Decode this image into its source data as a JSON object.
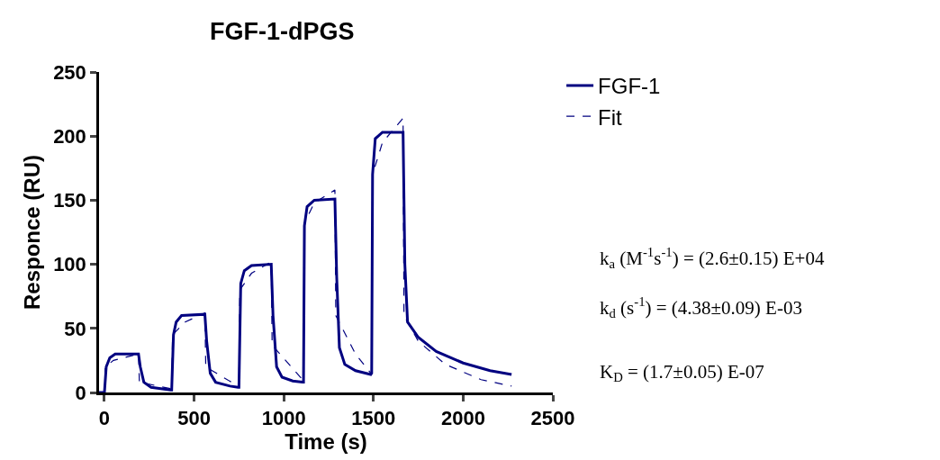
{
  "chart_data": {
    "type": "line",
    "title": "FGF-1-dPGS",
    "xlabel": "Time (s)",
    "ylabel": "Responce (RU)",
    "xlim": [
      -30,
      2500
    ],
    "xticks": [
      0,
      500,
      1000,
      1500,
      2000,
      2500
    ],
    "ylim": [
      0,
      250
    ],
    "yticks": [
      0,
      50,
      100,
      150,
      200,
      250
    ],
    "legend": "top right",
    "series": [
      {
        "name": "FGF-1",
        "color": "#000080",
        "line_style": "solid",
        "x": [
          -30,
          0,
          10,
          30,
          60,
          190,
          200,
          220,
          260,
          370,
          375,
          385,
          400,
          430,
          560,
          570,
          590,
          620,
          700,
          745,
          750,
          760,
          780,
          820,
          930,
          940,
          960,
          990,
          1050,
          1105,
          1110,
          1115,
          1130,
          1170,
          1285,
          1295,
          1310,
          1340,
          1400,
          1485,
          1490,
          1495,
          1510,
          1550,
          1665,
          1675,
          1690,
          1750,
          1850,
          2000,
          2150,
          2270
        ],
        "values": [
          0,
          0,
          20,
          27,
          30,
          30,
          20,
          8,
          4,
          2,
          2,
          45,
          55,
          60,
          61,
          40,
          15,
          8,
          5,
          4,
          4,
          85,
          95,
          99,
          100,
          60,
          20,
          12,
          9,
          8,
          8,
          130,
          145,
          150,
          151,
          90,
          35,
          22,
          17,
          14,
          15,
          170,
          198,
          203,
          203,
          100,
          55,
          43,
          32,
          23,
          17,
          14
        ]
      },
      {
        "name": "Fit",
        "color": "#000080",
        "line_style": "dashed",
        "x": [
          0,
          5,
          50,
          190,
          195,
          370,
          375,
          380,
          450,
          560,
          565,
          745,
          750,
          755,
          820,
          930,
          935,
          1105,
          1110,
          1115,
          1170,
          1285,
          1290,
          1400,
          1485,
          1490,
          1495,
          1550,
          1665,
          1670,
          1750,
          1900,
          2100,
          2270
        ],
        "values": [
          0,
          20,
          25,
          30,
          8,
          3,
          3,
          45,
          55,
          62,
          20,
          5,
          5,
          80,
          93,
          102,
          37,
          10,
          10,
          132,
          148,
          158,
          60,
          30,
          15,
          15,
          170,
          195,
          214,
          60,
          40,
          22,
          10,
          5
        ]
      }
    ],
    "annotations": [
      "k$_{a}$ (M$^{-1}$s$^{-1}$) = (2.6±0.15) E+04",
      "k$_{d}$ (s$^{-1}$) = (4.38±0.09) E-03",
      "K$_{D}$ = (1.7±0.05) E-07"
    ]
  }
}
